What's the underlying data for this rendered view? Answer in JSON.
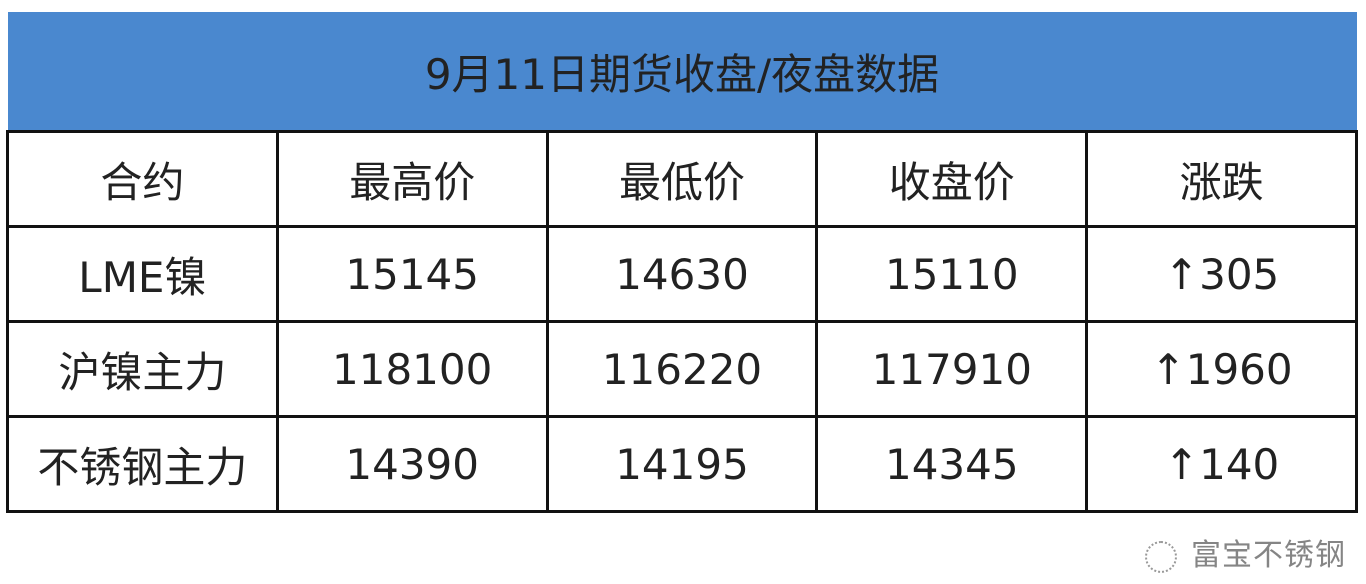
{
  "title": "9月11日期货收盘/夜盘数据",
  "headers": [
    "合约",
    "最高价",
    "最低价",
    "收盘价",
    "涨跌"
  ],
  "rows": [
    {
      "name": "LME镍",
      "high": "15145",
      "low": "14630",
      "close": "15110",
      "change": "↑305"
    },
    {
      "name": "沪镍主力",
      "high": "118100",
      "low": "116220",
      "close": "117910",
      "change": "↑1960"
    },
    {
      "name": "不锈钢主力",
      "high": "14390",
      "low": "14195",
      "close": "14345",
      "change": "↑140"
    }
  ],
  "colors": {
    "header_bg": "#4a88cf",
    "up": "#e02020"
  },
  "watermark": {
    "icon": "wechat-icon",
    "text": "富宝不锈钢"
  }
}
